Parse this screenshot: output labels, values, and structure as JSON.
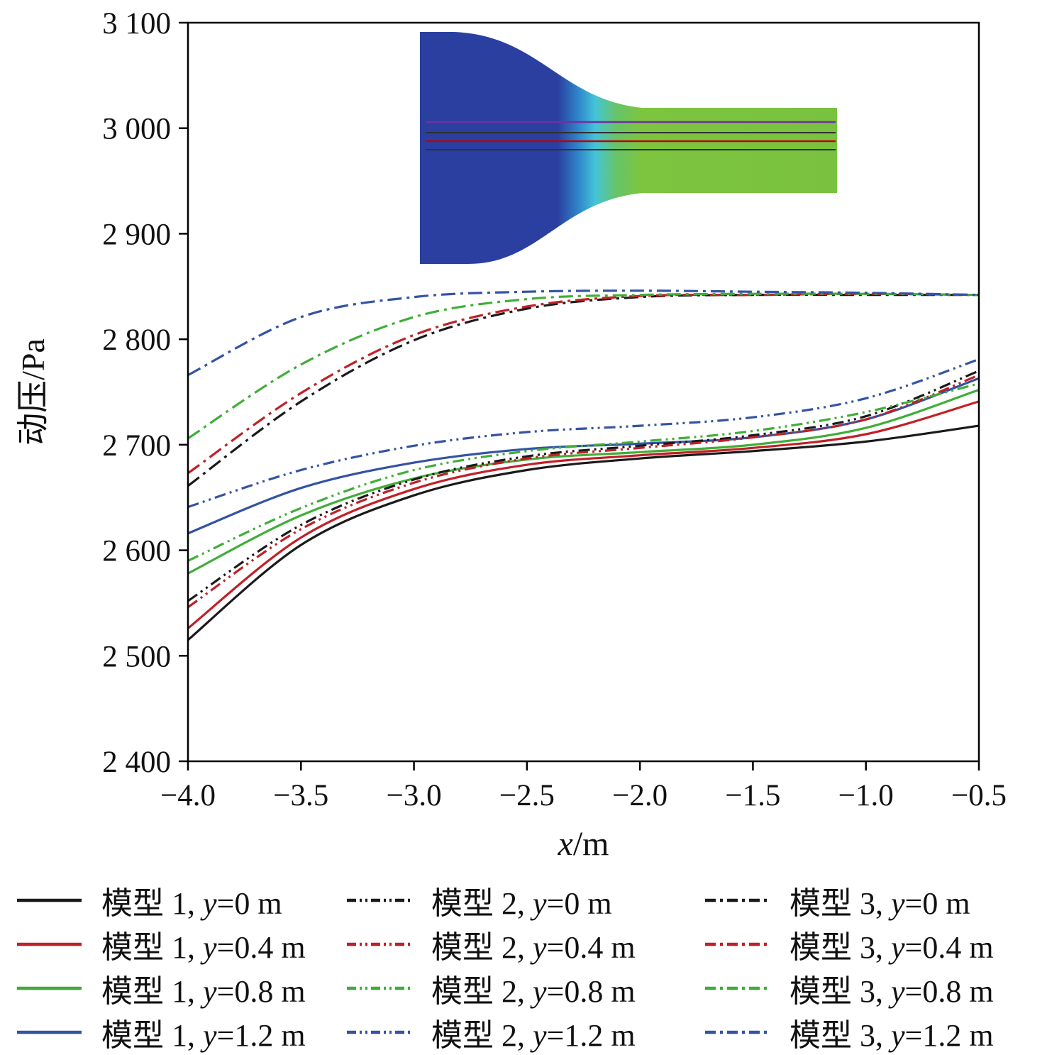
{
  "chart": {
    "y_axis_label": "动压/Pa",
    "x_axis_label": "x/m",
    "y_ticks": {
      "values": [
        2400,
        2500,
        2600,
        2700,
        2800,
        2900,
        3000,
        3100
      ],
      "labels": [
        "2 400",
        "2 500",
        "2 600",
        "2 700",
        "2 800",
        "2 900",
        "3 000",
        "3 100"
      ]
    },
    "x_ticks": {
      "values": [
        -4.0,
        -3.5,
        -3.0,
        -2.5,
        -2.0,
        -1.5,
        -1.0,
        -0.5
      ],
      "labels": [
        "−4.0",
        "−3.5",
        "−3.0",
        "−2.5",
        "−2.0",
        "−1.5",
        "−1.0",
        "−0.5"
      ]
    }
  },
  "chart_data": {
    "type": "line",
    "title": "",
    "xlabel": "x/m",
    "ylabel": "动压/Pa",
    "xlim": [
      -4.0,
      -0.5
    ],
    "ylim": [
      2400,
      3100
    ],
    "grid": false,
    "legend_position": "below",
    "x": [
      -4.0,
      -3.5,
      -3.0,
      -2.5,
      -2.0,
      -1.5,
      -1.0,
      -0.5
    ],
    "series": [
      {
        "name": "模型 1, y=0 m",
        "color": "#1a1a1a",
        "style": "solid",
        "values": [
          2515,
          2605,
          2652,
          2676,
          2687,
          2694,
          2703,
          2718
        ]
      },
      {
        "name": "模型 1, y=0.4 m",
        "color": "#c21f26",
        "style": "solid",
        "values": [
          2526,
          2612,
          2658,
          2681,
          2690,
          2697,
          2710,
          2741
        ]
      },
      {
        "name": "模型 1, y=0.8 m",
        "color": "#3fae37",
        "style": "solid",
        "values": [
          2578,
          2633,
          2668,
          2686,
          2693,
          2700,
          2716,
          2752
        ]
      },
      {
        "name": "模型 1, y=1.2 m",
        "color": "#3353a4",
        "style": "solid",
        "values": [
          2616,
          2659,
          2683,
          2696,
          2701,
          2707,
          2724,
          2763
        ]
      },
      {
        "name": "模型 2, y=0 m",
        "color": "#1a1a1a",
        "style": "dash-dot-dot",
        "values": [
          2552,
          2624,
          2667,
          2689,
          2699,
          2709,
          2727,
          2770
        ]
      },
      {
        "name": "模型 2, y=0.4 m",
        "color": "#c21f26",
        "style": "dash-dot-dot",
        "values": [
          2546,
          2620,
          2664,
          2687,
          2697,
          2707,
          2724,
          2766
        ]
      },
      {
        "name": "模型 2, y=0.8 m",
        "color": "#3fae37",
        "style": "dash-dot-dot",
        "values": [
          2590,
          2640,
          2676,
          2694,
          2703,
          2713,
          2731,
          2758
        ]
      },
      {
        "name": "模型 2, y=1.2 m",
        "color": "#3353a4",
        "style": "dash-dot-dot",
        "values": [
          2641,
          2676,
          2699,
          2712,
          2718,
          2726,
          2744,
          2781
        ]
      },
      {
        "name": "模型 3, y=0 m",
        "color": "#1a1a1a",
        "style": "dash-dot",
        "values": [
          2661,
          2741,
          2799,
          2829,
          2840,
          2842,
          2842,
          2842
        ]
      },
      {
        "name": "模型 3, y=0.4 m",
        "color": "#c21f26",
        "style": "dash-dot",
        "values": [
          2673,
          2749,
          2804,
          2831,
          2841,
          2842,
          2843,
          2842
        ]
      },
      {
        "name": "模型 3, y=0.8 m",
        "color": "#3fae37",
        "style": "dash-dot",
        "values": [
          2706,
          2776,
          2821,
          2838,
          2842,
          2843,
          2843,
          2842
        ]
      },
      {
        "name": "模型 3, y=1.2 m",
        "color": "#3353a4",
        "style": "dash-dot",
        "values": [
          2766,
          2821,
          2840,
          2845,
          2846,
          2845,
          2844,
          2842
        ]
      }
    ]
  },
  "inset": {
    "gradient_stops": [
      [
        "0",
        "#2a3fa0"
      ],
      [
        "0.33",
        "#2a3fa0"
      ],
      [
        "0.38",
        "#2f86ca"
      ],
      [
        "0.42",
        "#44c4d9"
      ],
      [
        "0.47",
        "#67c46a"
      ],
      [
        "0.53",
        "#7dc53f"
      ],
      [
        "1",
        "#79c23f"
      ]
    ],
    "streamline_colors": [
      "#7030a0",
      "#303030",
      "#c00000",
      "#303030"
    ]
  }
}
